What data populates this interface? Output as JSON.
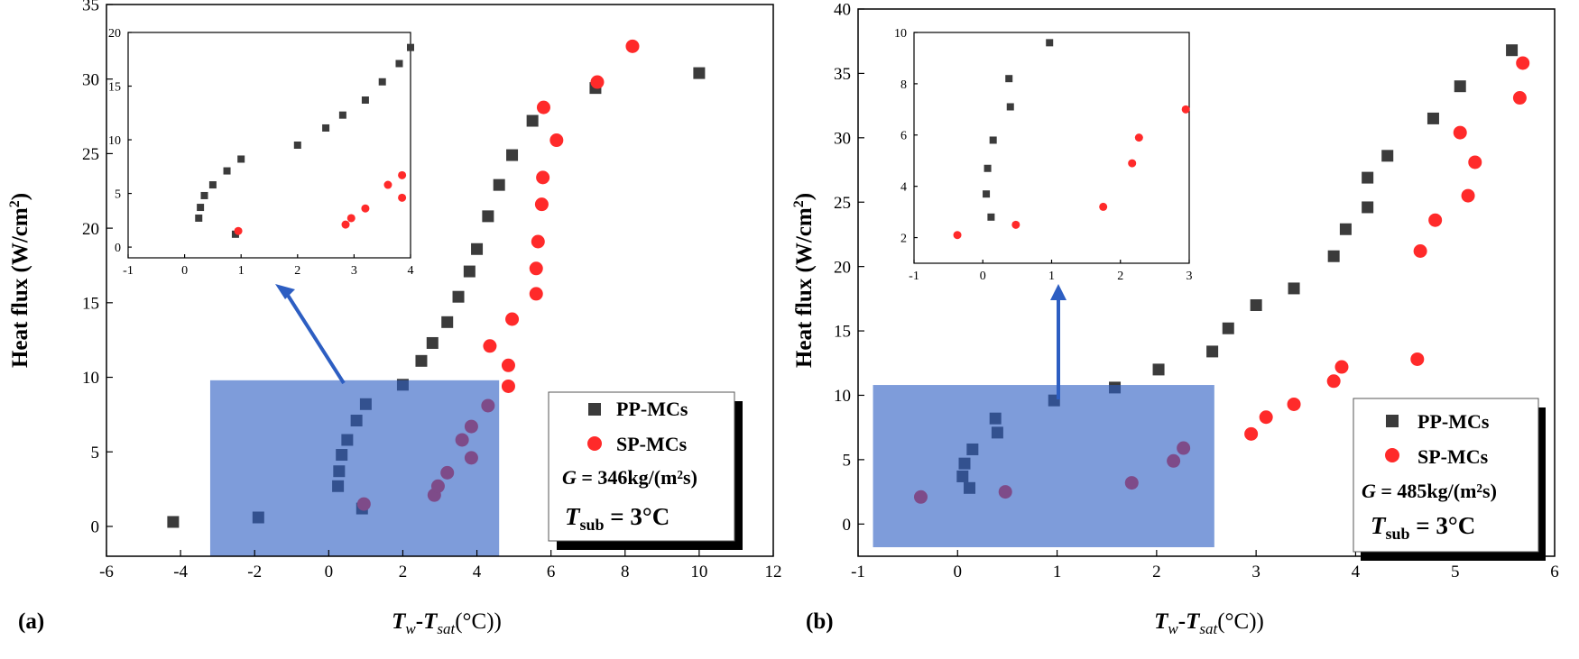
{
  "chart_data": [
    {
      "type": "scatter",
      "panel_label": "(a)",
      "ylabel_prefix": "Heat flux (W/cm",
      "ylabel_sup": "2",
      "ylabel_suffix": ")",
      "xlabel_t1": "T",
      "xlabel_s1": "w",
      "xlabel_mid": "-",
      "xlabel_t2": "T",
      "xlabel_s2": "sat",
      "xlabel_end": "(°C))",
      "xlim": [
        -6,
        12
      ],
      "ylim": [
        -2,
        35
      ],
      "xticks": [
        -6,
        -4,
        -2,
        0,
        2,
        4,
        6,
        8,
        10,
        12
      ],
      "yticks": [
        0,
        5,
        10,
        15,
        20,
        25,
        30,
        35
      ],
      "series": [
        {
          "name": "PP-MCs",
          "marker": "square",
          "color": "#3b3b3b",
          "x": [
            -4.2,
            -1.9,
            0.25,
            0.28,
            0.35,
            0.5,
            0.75,
            0.9,
            1.0,
            2.0,
            2.5,
            2.8,
            3.2,
            3.5,
            3.8,
            4.0,
            4.3,
            4.6,
            4.95,
            5.5,
            7.2,
            10.0
          ],
          "y": [
            0.3,
            0.6,
            2.7,
            3.7,
            4.8,
            5.8,
            7.1,
            1.2,
            8.2,
            9.5,
            11.1,
            12.3,
            13.7,
            15.4,
            17.1,
            18.6,
            20.8,
            22.9,
            24.9,
            27.2,
            29.4,
            30.4
          ]
        },
        {
          "name": "SP-MCs",
          "marker": "circle",
          "color": "#ff2a2a",
          "x": [
            0.95,
            2.85,
            2.95,
            3.2,
            3.6,
            3.85,
            3.85,
            4.3,
            4.35,
            4.85,
            4.85,
            4.95,
            5.6,
            5.6,
            5.65,
            5.75,
            5.78,
            5.8,
            6.15,
            7.25,
            8.2
          ],
          "y": [
            1.5,
            2.1,
            2.7,
            3.6,
            5.8,
            4.6,
            6.7,
            8.1,
            12.1,
            9.4,
            10.8,
            13.9,
            15.6,
            17.3,
            19.1,
            21.6,
            23.4,
            28.1,
            25.9,
            29.8,
            32.2
          ]
        }
      ],
      "highlight_box": {
        "x": [
          -3.2,
          4.6
        ],
        "y": [
          -2.5,
          9.8
        ]
      },
      "legend": {
        "position": "bottom-right",
        "entries": [
          "PP-MCs",
          "SP-MCs"
        ],
        "g_label": "G",
        "g_value": " = 346kg/(m²s)",
        "t_label": "T",
        "t_sub": "sub",
        "t_value": " = 3°C"
      },
      "inset": {
        "xlim": [
          -1,
          4
        ],
        "ylim": [
          -1,
          20
        ],
        "xticks": [
          -1,
          0,
          1,
          2,
          3,
          4
        ],
        "yticks": [
          0,
          5,
          10,
          15,
          20
        ]
      }
    },
    {
      "type": "scatter",
      "panel_label": "(b)",
      "ylabel_prefix": "Heat flux (W/cm",
      "ylabel_sup": "2",
      "ylabel_suffix": ")",
      "xlabel_t1": "T",
      "xlabel_s1": "w",
      "xlabel_mid": "-",
      "xlabel_t2": "T",
      "xlabel_s2": "sat",
      "xlabel_end": "(°C))",
      "xlim": [
        -1,
        6
      ],
      "ylim": [
        -2.5,
        40
      ],
      "xticks": [
        -1,
        0,
        1,
        2,
        3,
        4,
        5,
        6
      ],
      "yticks": [
        0,
        5,
        10,
        15,
        20,
        25,
        30,
        35,
        40
      ],
      "series": [
        {
          "name": "PP-MCs",
          "marker": "square",
          "color": "#3b3b3b",
          "x": [
            0.05,
            0.07,
            0.12,
            0.15,
            0.38,
            0.4,
            0.97,
            1.58,
            2.02,
            2.56,
            2.72,
            3.0,
            3.38,
            3.78,
            3.9,
            4.12,
            4.12,
            4.32,
            4.78,
            5.05,
            5.57
          ],
          "y": [
            3.7,
            4.7,
            2.8,
            5.8,
            8.2,
            7.1,
            9.6,
            10.6,
            12.0,
            13.4,
            15.2,
            17.0,
            18.3,
            20.8,
            22.9,
            24.6,
            26.9,
            28.6,
            31.5,
            34.0,
            36.8
          ]
        },
        {
          "name": "SP-MCs",
          "marker": "circle",
          "color": "#ff2a2a",
          "x": [
            -0.37,
            0.48,
            1.75,
            2.17,
            2.27,
            2.95,
            3.1,
            3.38,
            3.78,
            3.86,
            4.62,
            4.65,
            4.8,
            5.05,
            5.13,
            5.2,
            5.65,
            5.68
          ],
          "y": [
            2.1,
            2.5,
            3.2,
            4.9,
            5.9,
            7.0,
            8.3,
            9.3,
            11.1,
            12.2,
            12.8,
            21.2,
            23.6,
            30.4,
            25.5,
            28.1,
            33.1,
            35.8
          ]
        }
      ],
      "highlight_box": {
        "x": [
          -0.85,
          2.58
        ],
        "y": [
          -1.8,
          10.8
        ]
      },
      "legend": {
        "position": "bottom-right",
        "entries": [
          "PP-MCs",
          "SP-MCs"
        ],
        "g_label": "G",
        "g_value": " = 485kg/(m²s)",
        "t_label": "T",
        "t_sub": "sub",
        "t_value": " = 3°C"
      },
      "inset": {
        "xlim": [
          -1,
          3
        ],
        "ylim": [
          1,
          10
        ],
        "xticks": [
          -1,
          0,
          1,
          2,
          3
        ],
        "yticks": [
          2,
          4,
          6,
          8,
          10
        ]
      }
    }
  ]
}
